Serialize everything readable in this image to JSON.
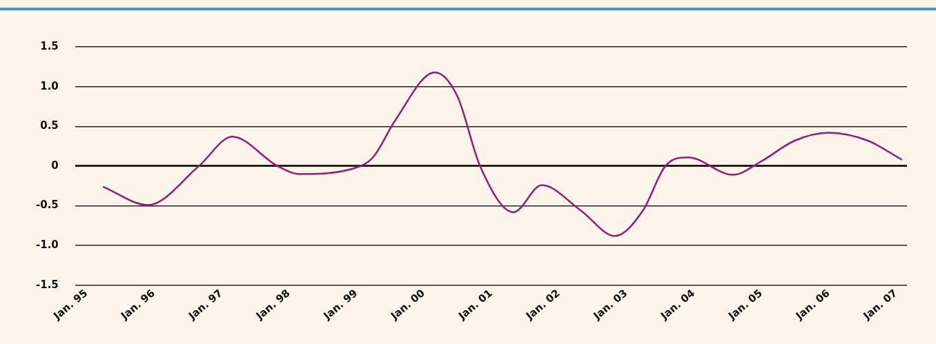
{
  "chart_data": {
    "type": "line",
    "x": [
      "1995-04",
      "1995-12",
      "1996-09",
      "1997-03",
      "1997-11",
      "1998-03",
      "1998-12",
      "1999-04",
      "1999-08",
      "2000-03",
      "2000-07",
      "2000-11",
      "2001-05",
      "2001-10",
      "2002-05",
      "2002-11",
      "2003-04",
      "2003-08",
      "2003-12",
      "2004-08",
      "2005-01",
      "2005-07",
      "2006-01",
      "2006-08",
      "2007-02"
    ],
    "series": [
      {
        "color": "#9b1b6b",
        "values": [
          -0.26,
          -0.49,
          0,
          0.37,
          0,
          -0.1,
          -0.04,
          0.11,
          0.58,
          1.18,
          0.88,
          0,
          -0.58,
          -0.24,
          -0.56,
          -0.88,
          -0.56,
          0,
          0.11,
          -0.11,
          0.06,
          0.32,
          0.42,
          0.32,
          0.08
        ]
      }
    ],
    "xlim": [
      "1994-11",
      "2007-03"
    ],
    "xticks": [
      {
        "value": "1995-01",
        "label": "Jan. 95"
      },
      {
        "value": "1996-01",
        "label": "Jan. 96"
      },
      {
        "value": "1997-01",
        "label": "Jan. 97"
      },
      {
        "value": "1998-01",
        "label": "Jan. 98"
      },
      {
        "value": "1999-01",
        "label": "Jan. 99"
      },
      {
        "value": "2000-01",
        "label": "Jan. 00"
      },
      {
        "value": "2001-01",
        "label": "Jan. 01"
      },
      {
        "value": "2002-01",
        "label": "Jan. 02"
      },
      {
        "value": "2003-01",
        "label": "Jan. 03"
      },
      {
        "value": "2004-01",
        "label": "Jan. 04"
      },
      {
        "value": "2005-01",
        "label": "Jan. 05"
      },
      {
        "value": "2006-01",
        "label": "Jan. 06"
      },
      {
        "value": "2007-01",
        "label": "Jan. 07"
      }
    ],
    "ylim": [
      -1.5,
      1.5
    ],
    "yticks": [
      {
        "value": -1.5,
        "label": "-1.5"
      },
      {
        "value": -1,
        "label": "-1.0"
      },
      {
        "value": -0.5,
        "label": "-0.5"
      },
      {
        "value": 0,
        "label": "0"
      },
      {
        "value": 0.5,
        "label": "0.5"
      },
      {
        "value": 1,
        "label": "1.0"
      },
      {
        "value": 1.5,
        "label": "1.5"
      }
    ],
    "grid": "y",
    "legend": false,
    "marker": "none",
    "line_style": "solid"
  }
}
